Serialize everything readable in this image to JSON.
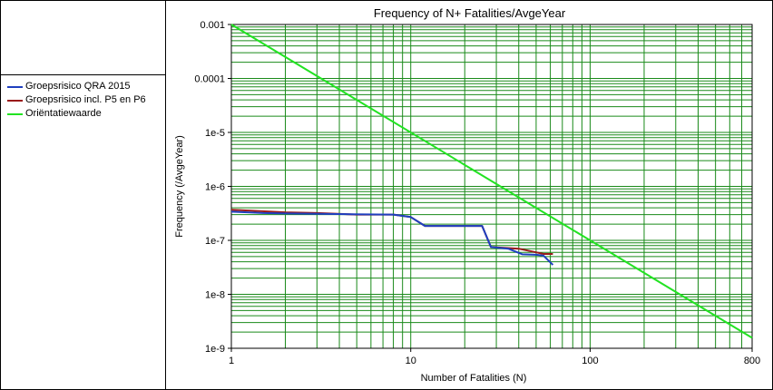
{
  "chart_data": {
    "type": "line",
    "title": "Frequency of N+ Fatalities/AvgeYear",
    "xlabel": "Number of Fatalities (N)",
    "ylabel": "Frequency (/AvgeYear)",
    "x_scale": "log",
    "y_scale": "log",
    "xlim": [
      1,
      800
    ],
    "ylim": [
      1e-09,
      0.001
    ],
    "grid": true,
    "legend_position": "left",
    "x_tick_labels": [
      {
        "value": 1,
        "label": "1"
      },
      {
        "value": 10,
        "label": "10"
      },
      {
        "value": 100,
        "label": "100"
      },
      {
        "value": 800,
        "label": "800"
      }
    ],
    "y_tick_labels": [
      {
        "value": 0.001,
        "label": "0.001"
      },
      {
        "value": 0.0001,
        "label": "0.0001"
      },
      {
        "value": 1e-05,
        "label": "1e-5"
      },
      {
        "value": 1e-06,
        "label": "1e-6"
      },
      {
        "value": 1e-07,
        "label": "1e-7"
      },
      {
        "value": 1e-08,
        "label": "1e-8"
      },
      {
        "value": 1e-09,
        "label": "1e-9"
      }
    ],
    "series": [
      {
        "name": "Groepsrisico QRA 2015",
        "color": "#1f3fbf",
        "points": [
          [
            1,
            3.4e-07
          ],
          [
            1.5,
            3.2e-07
          ],
          [
            2,
            3.15e-07
          ],
          [
            3,
            3.1e-07
          ],
          [
            4.7,
            3.05e-07
          ],
          [
            8,
            3e-07
          ],
          [
            10,
            2.7e-07
          ],
          [
            12,
            1.85e-07
          ],
          [
            20,
            1.85e-07
          ],
          [
            25,
            1.85e-07
          ],
          [
            28,
            7.5e-08
          ],
          [
            35,
            7e-08
          ],
          [
            42,
            5.5e-08
          ],
          [
            50,
            5.4e-08
          ],
          [
            55,
            5.2e-08
          ],
          [
            62,
            3.5e-08
          ]
        ]
      },
      {
        "name": "Groepsrisico incl. P5 en P6",
        "color": "#9a1a1a",
        "points": [
          [
            1,
            3.7e-07
          ],
          [
            2,
            3.3e-07
          ],
          [
            3,
            3.2e-07
          ],
          [
            5,
            3e-07
          ],
          [
            8,
            3e-07
          ],
          [
            10,
            2.7e-07
          ],
          [
            12,
            1.85e-07
          ],
          [
            25,
            1.85e-07
          ],
          [
            28,
            7.5e-08
          ],
          [
            40,
            7e-08
          ],
          [
            50,
            6e-08
          ],
          [
            55,
            5.6e-08
          ],
          [
            62,
            5.6e-08
          ]
        ]
      },
      {
        "name": "Oriëntatiewaarde",
        "color": "#22e322",
        "points": [
          [
            1,
            0.001
          ],
          [
            800,
            1.5625e-09
          ]
        ]
      }
    ]
  }
}
